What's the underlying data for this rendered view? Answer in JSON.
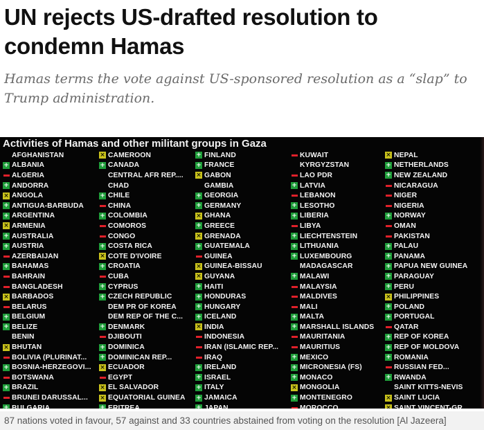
{
  "article": {
    "headline": "UN rejects US-drafted resolution to condemn Hamas",
    "subheadline": "Hamas terms the vote against US-sponsored resolution as a “slap” to Trump administration.",
    "caption": "87 nations voted in favour, 57 against and 33 countries abstained from voting on the resolution [Al Jazeera]"
  },
  "vote_board": {
    "title": "Activities of Hamas and other militant groups in Gaza",
    "legend_colors": {
      "yes": "#1f9e3a",
      "no": "#e0202a",
      "abstain": "#c9c21c"
    },
    "columns": [
      [
        {
          "name": "AFGHANISTAN",
          "vote": "none"
        },
        {
          "name": "ALBANIA",
          "vote": "yes"
        },
        {
          "name": "ALGERIA",
          "vote": "no"
        },
        {
          "name": "ANDORRA",
          "vote": "yes"
        },
        {
          "name": "ANGOLA",
          "vote": "abstain"
        },
        {
          "name": "ANTIGUA-BARBUDA",
          "vote": "yes"
        },
        {
          "name": "ARGENTINA",
          "vote": "yes"
        },
        {
          "name": "ARMENIA",
          "vote": "abstain"
        },
        {
          "name": "AUSTRALIA",
          "vote": "yes"
        },
        {
          "name": "AUSTRIA",
          "vote": "yes"
        },
        {
          "name": "AZERBAIJAN",
          "vote": "no"
        },
        {
          "name": "BAHAMAS",
          "vote": "yes"
        },
        {
          "name": "BAHRAIN",
          "vote": "no"
        },
        {
          "name": "BANGLADESH",
          "vote": "no"
        },
        {
          "name": "BARBADOS",
          "vote": "abstain"
        },
        {
          "name": "BELARUS",
          "vote": "no"
        },
        {
          "name": "BELGIUM",
          "vote": "yes"
        },
        {
          "name": "BELIZE",
          "vote": "yes"
        },
        {
          "name": "BENIN",
          "vote": "none"
        },
        {
          "name": "BHUTAN",
          "vote": "abstain"
        },
        {
          "name": "BOLIVIA (PLURINAT...",
          "vote": "no"
        },
        {
          "name": "BOSNIA-HERZEGOVI...",
          "vote": "yes"
        },
        {
          "name": "BOTSWANA",
          "vote": "no"
        },
        {
          "name": "BRAZIL",
          "vote": "yes"
        },
        {
          "name": "BRUNEI DARUSSAL...",
          "vote": "no"
        },
        {
          "name": "BULGARIA",
          "vote": "yes"
        }
      ],
      [
        {
          "name": "CAMEROON",
          "vote": "abstain"
        },
        {
          "name": "CANADA",
          "vote": "yes"
        },
        {
          "name": "CENTRAL AFR REP....",
          "vote": "none"
        },
        {
          "name": "CHAD",
          "vote": "none"
        },
        {
          "name": "CHILE",
          "vote": "yes"
        },
        {
          "name": "CHINA",
          "vote": "no"
        },
        {
          "name": "COLOMBIA",
          "vote": "yes"
        },
        {
          "name": "COMOROS",
          "vote": "no"
        },
        {
          "name": "CONGO",
          "vote": "no"
        },
        {
          "name": "COSTA RICA",
          "vote": "yes"
        },
        {
          "name": "COTE D'IVOIRE",
          "vote": "abstain"
        },
        {
          "name": "CROATIA",
          "vote": "yes"
        },
        {
          "name": "CUBA",
          "vote": "no"
        },
        {
          "name": "CYPRUS",
          "vote": "yes"
        },
        {
          "name": "CZECH REPUBLIC",
          "vote": "yes"
        },
        {
          "name": "DEM PR OF KOREA",
          "vote": "none"
        },
        {
          "name": "DEM REP OF THE C...",
          "vote": "none"
        },
        {
          "name": "DENMARK",
          "vote": "yes"
        },
        {
          "name": "DJIBOUTI",
          "vote": "no"
        },
        {
          "name": "DOMINICA",
          "vote": "yes"
        },
        {
          "name": "DOMINICAN REP...",
          "vote": "yes"
        },
        {
          "name": "ECUADOR",
          "vote": "abstain"
        },
        {
          "name": "EGYPT",
          "vote": "no"
        },
        {
          "name": "EL SALVADOR",
          "vote": "abstain"
        },
        {
          "name": "EQUATORIAL GUINEA",
          "vote": "abstain"
        },
        {
          "name": "ERITREA",
          "vote": "yes"
        }
      ],
      [
        {
          "name": "FINLAND",
          "vote": "yes"
        },
        {
          "name": "FRANCE",
          "vote": "yes"
        },
        {
          "name": "GABON",
          "vote": "abstain"
        },
        {
          "name": "GAMBIA",
          "vote": "none"
        },
        {
          "name": "GEORGIA",
          "vote": "yes"
        },
        {
          "name": "GERMANY",
          "vote": "yes"
        },
        {
          "name": "GHANA",
          "vote": "abstain"
        },
        {
          "name": "GREECE",
          "vote": "yes"
        },
        {
          "name": "GRENADA",
          "vote": "abstain"
        },
        {
          "name": "GUATEMALA",
          "vote": "yes"
        },
        {
          "name": "GUINEA",
          "vote": "no"
        },
        {
          "name": "GUINEA-BISSAU",
          "vote": "abstain"
        },
        {
          "name": "GUYANA",
          "vote": "abstain"
        },
        {
          "name": "HAITI",
          "vote": "yes"
        },
        {
          "name": "HONDURAS",
          "vote": "yes"
        },
        {
          "name": "HUNGARY",
          "vote": "yes"
        },
        {
          "name": "ICELAND",
          "vote": "yes"
        },
        {
          "name": "INDIA",
          "vote": "abstain"
        },
        {
          "name": "INDONESIA",
          "vote": "no"
        },
        {
          "name": "IRAN (ISLAMIC REP...",
          "vote": "no"
        },
        {
          "name": "IRAQ",
          "vote": "no"
        },
        {
          "name": "IRELAND",
          "vote": "yes"
        },
        {
          "name": "ISRAEL",
          "vote": "yes"
        },
        {
          "name": "ITALY",
          "vote": "yes"
        },
        {
          "name": "JAMAICA",
          "vote": "yes"
        },
        {
          "name": "JAPAN",
          "vote": "yes"
        }
      ],
      [
        {
          "name": "KUWAIT",
          "vote": "no"
        },
        {
          "name": "KYRGYZSTAN",
          "vote": "none"
        },
        {
          "name": "LAO PDR",
          "vote": "no"
        },
        {
          "name": "LATVIA",
          "vote": "yes"
        },
        {
          "name": "LEBANON",
          "vote": "no"
        },
        {
          "name": "LESOTHO",
          "vote": "yes"
        },
        {
          "name": "LIBERIA",
          "vote": "yes"
        },
        {
          "name": "LIBYA",
          "vote": "no"
        },
        {
          "name": "LIECHTENSTEIN",
          "vote": "yes"
        },
        {
          "name": "LITHUANIA",
          "vote": "yes"
        },
        {
          "name": "LUXEMBOURG",
          "vote": "yes"
        },
        {
          "name": "MADAGASCAR",
          "vote": "none"
        },
        {
          "name": "MALAWI",
          "vote": "yes"
        },
        {
          "name": "MALAYSIA",
          "vote": "no"
        },
        {
          "name": "MALDIVES",
          "vote": "no"
        },
        {
          "name": "MALI",
          "vote": "no"
        },
        {
          "name": "MALTA",
          "vote": "yes"
        },
        {
          "name": "MARSHALL ISLANDS",
          "vote": "yes"
        },
        {
          "name": "MAURITANIA",
          "vote": "no"
        },
        {
          "name": "MAURITIUS",
          "vote": "no"
        },
        {
          "name": "MEXICO",
          "vote": "yes"
        },
        {
          "name": "MICRONESIA (FS)",
          "vote": "yes"
        },
        {
          "name": "MONACO",
          "vote": "yes"
        },
        {
          "name": "MONGOLIA",
          "vote": "abstain"
        },
        {
          "name": "MONTENEGRO",
          "vote": "yes"
        },
        {
          "name": "MOROCCO",
          "vote": "no"
        }
      ],
      [
        {
          "name": "NEPAL",
          "vote": "abstain"
        },
        {
          "name": "NETHERLANDS",
          "vote": "yes"
        },
        {
          "name": "NEW ZEALAND",
          "vote": "yes"
        },
        {
          "name": "NICARAGUA",
          "vote": "no"
        },
        {
          "name": "NIGER",
          "vote": "no"
        },
        {
          "name": "NIGERIA",
          "vote": "no"
        },
        {
          "name": "NORWAY",
          "vote": "yes"
        },
        {
          "name": "OMAN",
          "vote": "no"
        },
        {
          "name": "PAKISTAN",
          "vote": "no"
        },
        {
          "name": "PALAU",
          "vote": "yes"
        },
        {
          "name": "PANAMA",
          "vote": "yes"
        },
        {
          "name": "PAPUA NEW GUINEA",
          "vote": "yes"
        },
        {
          "name": "PARAGUAY",
          "vote": "yes"
        },
        {
          "name": "PERU",
          "vote": "yes"
        },
        {
          "name": "PHILIPPINES",
          "vote": "abstain"
        },
        {
          "name": "POLAND",
          "vote": "yes"
        },
        {
          "name": "PORTUGAL",
          "vote": "yes"
        },
        {
          "name": "QATAR",
          "vote": "no"
        },
        {
          "name": "REP OF KOREA",
          "vote": "yes"
        },
        {
          "name": "REP OF MOLDOVA",
          "vote": "yes"
        },
        {
          "name": "ROMANIA",
          "vote": "yes"
        },
        {
          "name": "RUSSIAN FED...",
          "vote": "no"
        },
        {
          "name": "RWANDA",
          "vote": "yes"
        },
        {
          "name": "SAINT KITTS-NEVIS",
          "vote": "none"
        },
        {
          "name": "SAINT LUCIA",
          "vote": "abstain"
        },
        {
          "name": "SAINT VINCENT-GR...",
          "vote": "abstain"
        }
      ]
    ]
  }
}
